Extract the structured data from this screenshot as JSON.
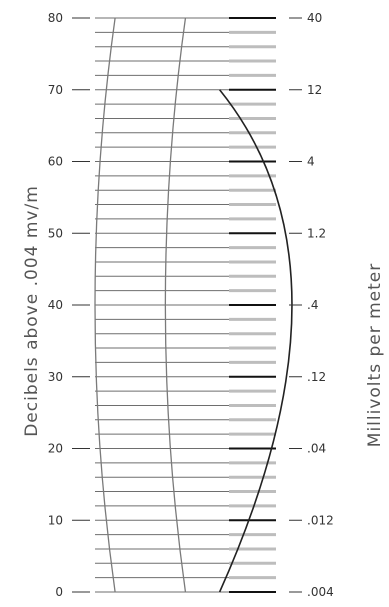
{
  "chart_data": {
    "type": "line",
    "title": "",
    "left_axis": {
      "label": "Decibels above .004 mv/m",
      "range": [
        0,
        80
      ],
      "ticks": [
        {
          "value": 0,
          "label": "0"
        },
        {
          "value": 10,
          "label": "10"
        },
        {
          "value": 20,
          "label": "20"
        },
        {
          "value": 30,
          "label": "30"
        },
        {
          "value": 40,
          "label": "40"
        },
        {
          "value": 50,
          "label": "50"
        },
        {
          "value": 60,
          "label": "60"
        },
        {
          "value": 70,
          "label": "70"
        },
        {
          "value": 80,
          "label": "80"
        }
      ],
      "minor_step": 2
    },
    "right_axis": {
      "label": "Millivolts per meter",
      "scale": "log",
      "ticks": [
        {
          "db": 0,
          "label": ".004"
        },
        {
          "db": 10,
          "label": ".012"
        },
        {
          "db": 20,
          "label": ".04"
        },
        {
          "db": 30,
          "label": ".12"
        },
        {
          "db": 40,
          "label": ".4"
        },
        {
          "db": 50,
          "label": "1.2"
        },
        {
          "db": 60,
          "label": "4"
        },
        {
          "db": 70,
          "label": "12"
        },
        {
          "db": 80,
          "label": "40"
        }
      ]
    },
    "curves": [
      {
        "id": "left",
        "color": "#7a7a7a",
        "points": [
          [
            0,
            0.1
          ],
          [
            40,
            0.0
          ],
          [
            80,
            0.1
          ]
        ]
      },
      {
        "id": "middle",
        "color": "#7a7a7a",
        "points": [
          [
            0,
            0.45
          ],
          [
            40,
            0.35
          ],
          [
            80,
            0.45
          ]
        ]
      },
      {
        "id": "right",
        "color": "#222222",
        "points": [
          [
            0,
            0.62
          ],
          [
            40,
            0.98
          ],
          [
            70,
            0.62
          ]
        ]
      }
    ],
    "colors": {
      "grid": "#6e6e6e",
      "major_ticks": "#111111",
      "minor_ticks": "#bdbdbd"
    }
  }
}
